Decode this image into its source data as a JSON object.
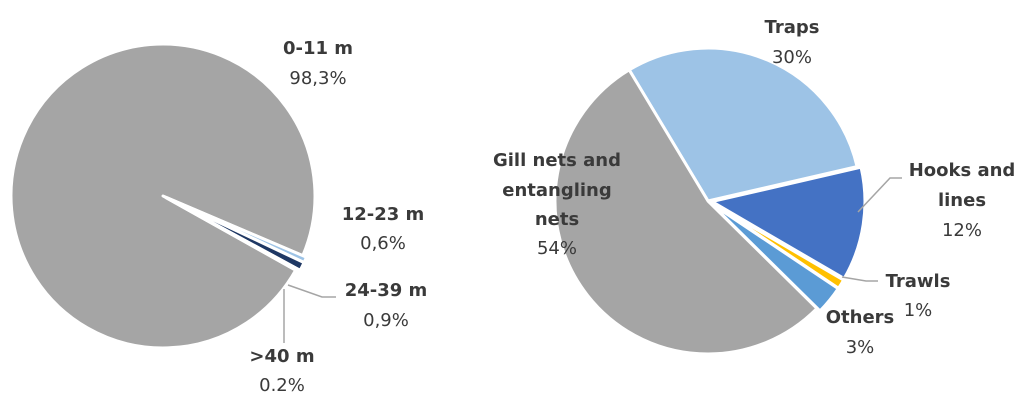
{
  "chart_data": [
    {
      "type": "pie",
      "title": "",
      "slices": [
        {
          "label": "0-11 m",
          "value": 98.3,
          "display": "98,3%",
          "color": "#a5a5a5"
        },
        {
          "label": "12-23 m",
          "value": 0.6,
          "display": "0,6%",
          "color": "#9dc3e6"
        },
        {
          "label": "24-39 m",
          "value": 0.9,
          "display": "0,9%",
          "color": "#1f3864"
        },
        {
          "label": ">40 m",
          "value": 0.2,
          "display": "0.2%",
          "color": "#4472c4"
        }
      ]
    },
    {
      "type": "pie",
      "title": "",
      "slices": [
        {
          "label": "Traps",
          "value": 30,
          "display": "30%",
          "color": "#9dc3e6"
        },
        {
          "label": "Hooks and lines",
          "value": 12,
          "display": "12%",
          "color": "#4472c4"
        },
        {
          "label": "Trawls",
          "value": 1,
          "display": "1%",
          "color": "#ffc000"
        },
        {
          "label": "Others",
          "value": 3,
          "display": "3%",
          "color": "#5b9bd5"
        },
        {
          "label": "Gill nets and entangling nets",
          "value": 54,
          "display": "54%",
          "color": "#a5a5a5"
        }
      ]
    }
  ]
}
